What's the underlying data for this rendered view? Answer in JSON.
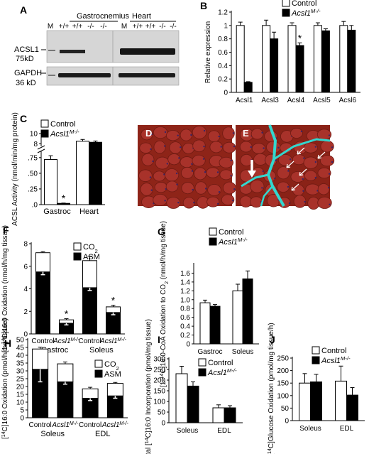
{
  "colors": {
    "control": "#ffffff",
    "ko": "#000000",
    "axis": "#000000",
    "star": "#000000",
    "blot_bg": "#d6d6d6",
    "band": "#222222",
    "histo_bg": "#8e2418",
    "histo_nuclei": "#3a2466",
    "stain": "#32d7cf"
  },
  "panels": {
    "A": {
      "letter": "A",
      "groups": [
        "Gastrocnemius",
        "Heart"
      ],
      "lane_labels": [
        "M",
        "+/+",
        "+/+",
        "-/-",
        "-/-",
        "M",
        "+/+",
        "+/+",
        "-/-",
        "-/-"
      ],
      "row1_label": "ACSL1",
      "row1_size": "75kD",
      "row2_label": "GAPDH",
      "row2_size": "36 kD"
    },
    "D": {
      "letter": "D"
    },
    "E": {
      "letter": "E"
    }
  },
  "chart_data": [
    {
      "id": "B",
      "type": "bar",
      "letter": "B",
      "categories": [
        "Acsl1",
        "Acsl3",
        "Acsl4",
        "Acsl5",
        "Acsl6"
      ],
      "series": [
        {
          "name": "Control",
          "values": [
            1.0,
            1.0,
            1.0,
            1.0,
            1.0
          ],
          "errors": [
            0.05,
            0.08,
            0.04,
            0.04,
            0.06
          ]
        },
        {
          "name": "Acsl1M-/-",
          "values": [
            0.15,
            0.8,
            0.7,
            0.92,
            0.93
          ],
          "errors": [
            0.01,
            0.1,
            0.04,
            0.03,
            0.07
          ]
        }
      ],
      "ylabel": "Relative expression",
      "ylim": [
        0,
        1.2
      ],
      "yticks": [
        "0",
        "0.2",
        "0.4",
        "0.6",
        "0.8",
        "1",
        "1.2"
      ],
      "legend": [
        "Control",
        "Acsl1M-/-"
      ],
      "annotations": [
        {
          "category": "Acsl4",
          "text": "*"
        }
      ]
    },
    {
      "id": "C",
      "type": "bar",
      "letter": "C",
      "categories": [
        "Gastroc",
        "Heart"
      ],
      "series": [
        {
          "name": "Control",
          "values": [
            0.72,
            8.5
          ],
          "errors": [
            0.06,
            0.35
          ]
        },
        {
          "name": "Acsl1M-/-",
          "values": [
            0.02,
            8.3
          ],
          "errors": [
            0.005,
            0.25
          ]
        }
      ],
      "ylabel": "ACSL Activity (nmol/min/mg protein)",
      "ylim_lower": [
        0,
        0.85
      ],
      "ylim_upper": [
        7.5,
        10
      ],
      "yticks_lower": [
        ".0",
        ".25",
        ".50",
        ".75"
      ],
      "yticks_upper": [
        "8",
        "10"
      ],
      "legend": [
        "Control",
        "Acsl1M-/-"
      ],
      "annotations": [
        {
          "category": "Gastroc",
          "text": "*"
        }
      ]
    },
    {
      "id": "F",
      "type": "bar",
      "letter": "F",
      "stacked": true,
      "groups": [
        "Gastroc",
        "Soleus"
      ],
      "categories": [
        "Control",
        "Acsl1M-/-",
        "Control",
        "Acsl1M-/-"
      ],
      "series": [
        {
          "name": "ASM",
          "values": [
            5.5,
            0.95,
            4.1,
            1.9
          ],
          "errors": [
            0.25,
            0.15,
            0.25,
            0.2
          ]
        },
        {
          "name": "CO2",
          "values": [
            1.7,
            0.3,
            2.4,
            0.5
          ],
          "errors": [
            0.1,
            0.1,
            0.4,
            0.15
          ]
        }
      ],
      "ylabel": "[1-14C]16:0 Oxidation (nmol/h/mg tissue)",
      "ylim": [
        0,
        8
      ],
      "yticks": [
        "0",
        "2",
        "4",
        "6",
        "8"
      ],
      "legend": [
        "CO2",
        "ASM"
      ],
      "annotations": [
        {
          "bar": 1,
          "text": "*"
        },
        {
          "bar": 3,
          "text": "*"
        }
      ]
    },
    {
      "id": "G",
      "type": "bar",
      "letter": "G",
      "categories": [
        "Gastroc",
        "Soleus"
      ],
      "series": [
        {
          "name": "Control",
          "values": [
            0.93,
            1.2
          ],
          "errors": [
            0.06,
            0.15
          ]
        },
        {
          "name": "Acsl1M-/-",
          "values": [
            0.85,
            1.47
          ],
          "errors": [
            0.04,
            0.18
          ]
        }
      ],
      "ylabel": "[1-14C]16:0-CoA Oxidation to CO2 (nmol/h/mg tissue)",
      "ylim": [
        0,
        1.8
      ],
      "yticks": [
        "0",
        "0.2",
        "0.4",
        "0.6",
        "0.8",
        "1.0",
        "1.2",
        "1.4",
        "1.6"
      ],
      "legend": [
        "Control",
        "Acsl1M-/-"
      ]
    },
    {
      "id": "H",
      "type": "bar",
      "letter": "H",
      "stacked": true,
      "groups": [
        "Soleus",
        "EDL"
      ],
      "categories": [
        "Control",
        "Acsl1M-/-",
        "Control",
        "Acsl1M-/-"
      ],
      "series": [
        {
          "name": "ASM",
          "values": [
            31,
            23,
            12.5,
            14
          ],
          "errors": [
            8,
            1.5,
            1.5,
            1.5
          ]
        },
        {
          "name": "CO2",
          "values": [
            13,
            11.5,
            6,
            8
          ],
          "errors": [
            1.2,
            1.2,
            1,
            0.6
          ]
        }
      ],
      "ylabel": "[14C]16:0 Oxidation (pmol/h/mg tissue)",
      "ylim": [
        0,
        50
      ],
      "yticks": [
        "0",
        "5",
        "10",
        "15",
        "20",
        "25",
        "30",
        "35",
        "40",
        "45",
        "50"
      ],
      "legend": [
        "CO2",
        "ASM"
      ]
    },
    {
      "id": "I",
      "type": "bar",
      "letter": "I",
      "categories": [
        "Soleus",
        "EDL"
      ],
      "series": [
        {
          "name": "Control",
          "values": [
            230,
            70
          ],
          "errors": [
            35,
            14
          ]
        },
        {
          "name": "Acsl1M-/-",
          "values": [
            172,
            70
          ],
          "errors": [
            20,
            10
          ]
        }
      ],
      "ylabel": "Total [14C]16:0 Incorporation (pmol/mg tissue)",
      "ylim": [
        0,
        300
      ],
      "yticks": [
        "0",
        "50",
        "100",
        "150",
        "200",
        "250",
        "300"
      ],
      "legend": [
        "Control",
        "Acsl1M-/-"
      ]
    },
    {
      "id": "J",
      "type": "bar",
      "letter": "J",
      "categories": [
        "Soleus",
        "EDL"
      ],
      "series": [
        {
          "name": "Control",
          "values": [
            150,
            158
          ],
          "errors": [
            38,
            60
          ]
        },
        {
          "name": "Acsl1M-/-",
          "values": [
            155,
            102
          ],
          "errors": [
            30,
            30
          ]
        }
      ],
      "ylabel": "[14C]Glucose Oxidation (pmol/mg tissue/h)",
      "ylim": [
        0,
        250
      ],
      "yticks": [
        "0",
        "50",
        "100",
        "150",
        "200",
        "250"
      ],
      "legend": [
        "Control",
        "Acsl1M-/-"
      ]
    }
  ]
}
